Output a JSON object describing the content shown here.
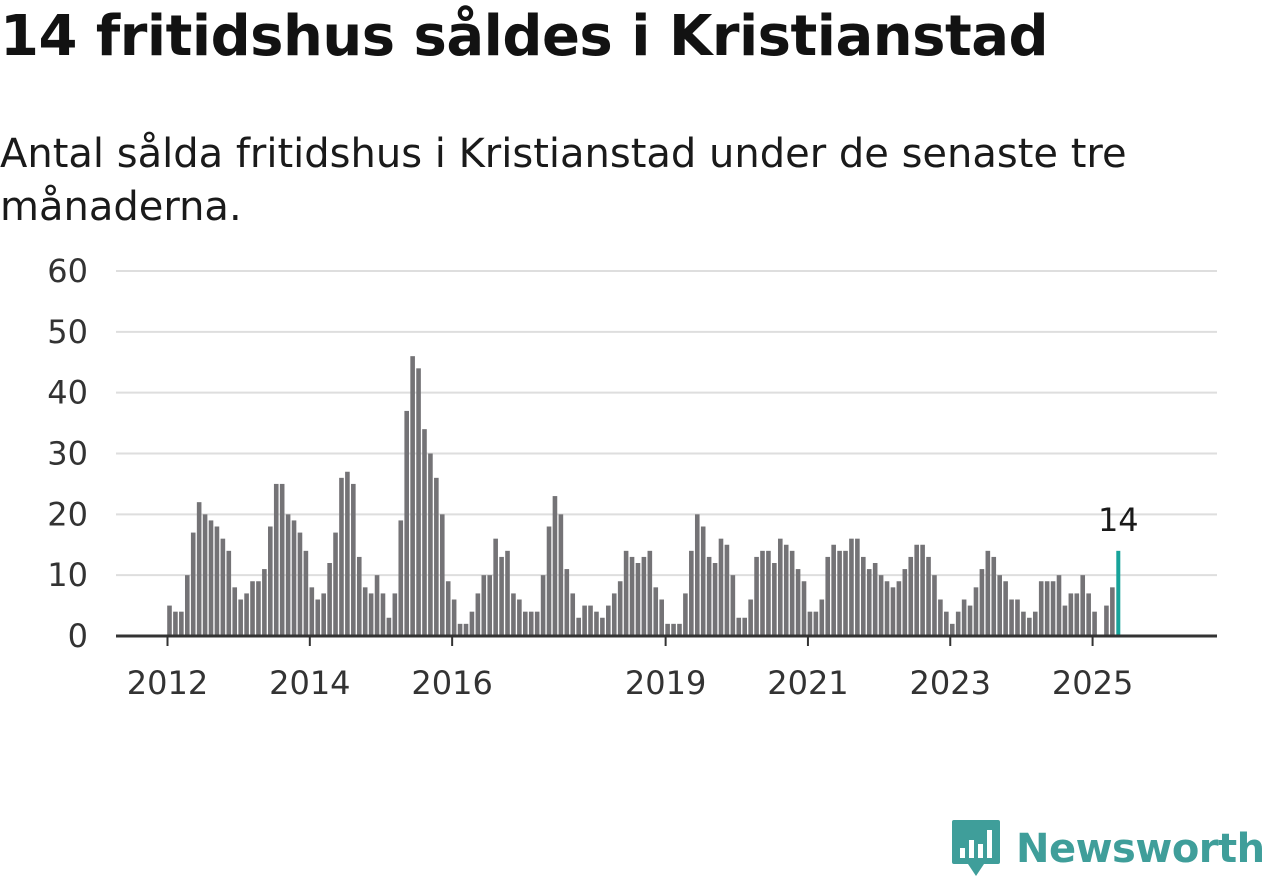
{
  "header": {
    "title": "14 fritidshus såldes i Kristianstad",
    "subtitle": "Antal sålda fritidshus i Kristianstad under de senaste tre månaderna."
  },
  "brand": {
    "name": "Newsworthy",
    "color": "#3f9e9a",
    "icon": "newsworthy-logo-icon"
  },
  "colors": {
    "bar": "#747376",
    "highlight": "#17a39a",
    "grid": "#dedede",
    "axis": "#333333"
  },
  "chart_data": {
    "type": "bar",
    "ylim": [
      0,
      60
    ],
    "yticks": [
      0,
      10,
      20,
      30,
      40,
      50,
      60
    ],
    "xticks": [
      "2012",
      "2014",
      "2016",
      "2019",
      "2021",
      "2023",
      "2025"
    ],
    "grid": true,
    "highlight": {
      "label": "14",
      "value": 14
    },
    "values": [
      5,
      4,
      4,
      10,
      17,
      22,
      20,
      19,
      18,
      16,
      14,
      8,
      6,
      7,
      9,
      9,
      11,
      18,
      25,
      25,
      20,
      19,
      17,
      14,
      8,
      6,
      7,
      12,
      17,
      26,
      27,
      25,
      13,
      8,
      7,
      10,
      7,
      3,
      7,
      19,
      37,
      46,
      44,
      34,
      30,
      26,
      20,
      9,
      6,
      2,
      2,
      4,
      7,
      10,
      10,
      16,
      13,
      14,
      7,
      6,
      4,
      4,
      4,
      10,
      18,
      23,
      20,
      11,
      7,
      3,
      5,
      5,
      4,
      3,
      5,
      7,
      9,
      14,
      13,
      12,
      13,
      14,
      8,
      6,
      2,
      2,
      2,
      7,
      14,
      20,
      18,
      13,
      12,
      16,
      15,
      10,
      3,
      3,
      6,
      13,
      14,
      14,
      12,
      16,
      15,
      14,
      11,
      9,
      4,
      4,
      6,
      13,
      15,
      14,
      14,
      16,
      16,
      13,
      11,
      12,
      10,
      9,
      8,
      9,
      11,
      13,
      15,
      15,
      13,
      10,
      6,
      4,
      2,
      4,
      6,
      5,
      8,
      11,
      14,
      13,
      10,
      9,
      6,
      6,
      4,
      3,
      4,
      9,
      9,
      9,
      10,
      5,
      7,
      7,
      10,
      7,
      4,
      0,
      5,
      8,
      14
    ]
  }
}
